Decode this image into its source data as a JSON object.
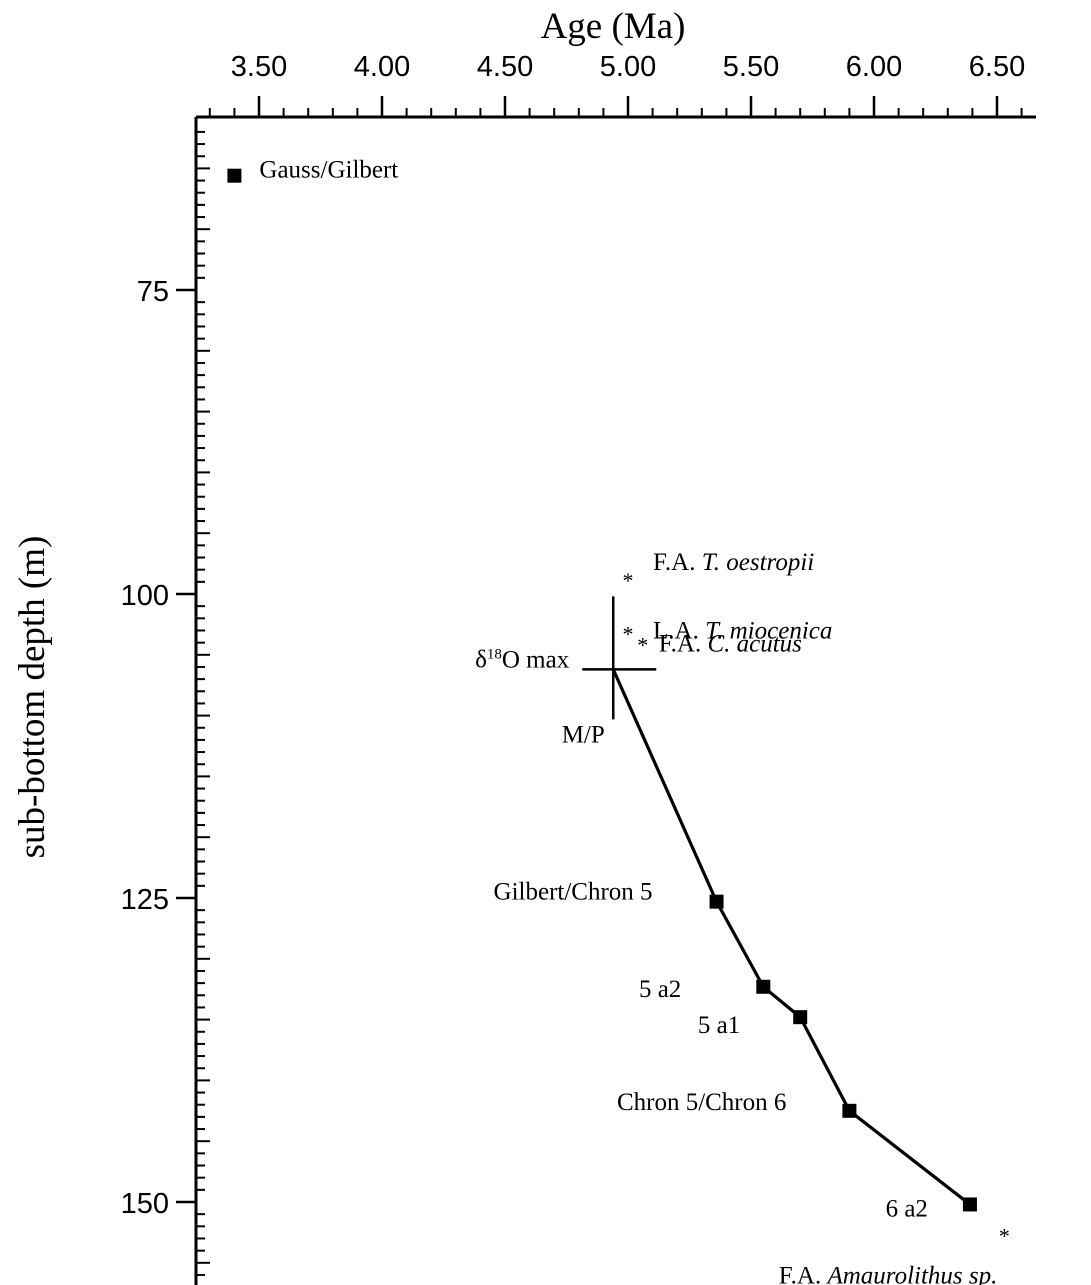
{
  "chart_data": {
    "type": "scatter",
    "title": "",
    "xlabel": "Age (Ma)",
    "ylabel": "sub-bottom depth (m)",
    "x_axis_position": "top",
    "y_axis_inverted": true,
    "xlim": [
      3.25,
      6.65
    ],
    "ylim": [
      61,
      156
    ],
    "x_ticks": [
      3.5,
      4.0,
      4.5,
      5.0,
      5.5,
      6.0,
      6.5
    ],
    "x_tick_labels": [
      "3.50",
      "4.00",
      "4.50",
      "5.00",
      "5.50",
      "6.00",
      "6.50"
    ],
    "y_ticks": [
      75,
      100,
      125,
      150
    ],
    "y_tick_labels": [
      "75",
      "100",
      "125",
      "150"
    ],
    "grid": false,
    "series": [
      {
        "style": "line-with-square-markers",
        "points": [
          {
            "x": 4.94,
            "y": 106.2,
            "label": "",
            "marker": "none"
          },
          {
            "x": 5.36,
            "y": 125.3,
            "label": "Gilbert/Chron 5",
            "marker": "square"
          },
          {
            "x": 5.55,
            "y": 132.3,
            "label": "5 a2",
            "marker": "square"
          },
          {
            "x": 5.7,
            "y": 134.8,
            "label": "5 a1",
            "marker": "square"
          },
          {
            "x": 5.9,
            "y": 142.5,
            "label": "Chron 5/Chron 6",
            "marker": "square"
          },
          {
            "x": 6.39,
            "y": 150.2,
            "label": "6 a2",
            "marker": "square"
          }
        ]
      },
      {
        "style": "square-marker",
        "points": [
          {
            "x": 3.4,
            "y": 65.6,
            "label": "Gauss/Gilbert"
          }
        ]
      },
      {
        "style": "star-marker",
        "points": [
          {
            "x": 5.0,
            "y": 98.7,
            "label_prefix": "F.A.",
            "label_italic": "T. oestropii"
          },
          {
            "x": 5.0,
            "y": 103.1,
            "label_prefix": "L.A.",
            "label_italic": "T. miocenica"
          },
          {
            "x": 5.06,
            "y": 104.0,
            "label_prefix": "F.A.",
            "label_italic": "C. acutus"
          },
          {
            "x": 6.53,
            "y": 152.6,
            "label_prefix": "F.A.",
            "label_italic": "Amaurolithus sp."
          }
        ]
      }
    ],
    "annotations": {
      "boundary_marker": {
        "x": 4.94,
        "y": 106.2,
        "label_vertical": "M/P"
      },
      "isotope_label": {
        "prefix": "δ",
        "superscript": "18",
        "suffix": "O max"
      }
    }
  }
}
